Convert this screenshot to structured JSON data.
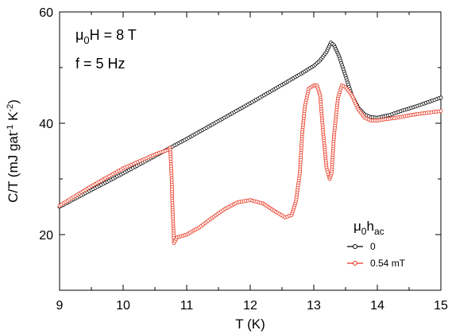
{
  "chart_data": {
    "type": "line",
    "xlabel": "T (K)",
    "ylabel": "C/T (mJ gat⁻¹ K⁻²)",
    "xlim": [
      9,
      15
    ],
    "ylim": [
      10,
      60
    ],
    "xticks": [
      "9",
      "10",
      "11",
      "12",
      "13",
      "14",
      "15"
    ],
    "yticks": [
      "20",
      "40",
      "60"
    ],
    "annotations": [
      "μ0H = 8 T",
      "f = 5 Hz"
    ],
    "legend": {
      "title": "μ0hac",
      "placement": "bottom-right"
    },
    "grid": false,
    "series": [
      {
        "name": "0",
        "color": "#000000",
        "x": [
          9.0,
          9.5,
          10.0,
          10.5,
          11.0,
          11.5,
          12.0,
          12.5,
          12.8,
          13.0,
          13.1,
          13.2,
          13.27,
          13.32,
          13.4,
          13.5,
          13.6,
          13.7,
          13.8,
          13.9,
          14.0,
          14.2,
          14.4,
          14.6,
          14.8,
          15.0
        ],
        "y": [
          25.0,
          28.0,
          31.0,
          34.1,
          37.2,
          40.4,
          43.6,
          46.9,
          48.9,
          50.3,
          51.3,
          52.8,
          54.5,
          54.0,
          52.0,
          48.5,
          45.0,
          42.8,
          41.6,
          41.1,
          41.0,
          41.5,
          42.3,
          43.0,
          43.8,
          44.6
        ]
      },
      {
        "name": "0.54 mT",
        "color": "#e8321c",
        "x": [
          9.0,
          9.5,
          10.0,
          10.5,
          10.7,
          10.74,
          10.76,
          10.78,
          10.8,
          10.85,
          11.0,
          11.2,
          11.4,
          11.6,
          11.8,
          12.0,
          12.2,
          12.4,
          12.55,
          12.65,
          12.72,
          12.78,
          12.82,
          12.86,
          12.92,
          13.0,
          13.05,
          13.1,
          13.15,
          13.2,
          13.25,
          13.28,
          13.32,
          13.38,
          13.44,
          13.5,
          13.6,
          13.7,
          13.8,
          13.9,
          14.0,
          14.3,
          14.6,
          15.0
        ],
        "y": [
          25.2,
          28.7,
          31.9,
          34.4,
          35.2,
          35.6,
          31.0,
          24.0,
          18.5,
          19.5,
          20.0,
          21.3,
          23.0,
          24.6,
          25.8,
          26.2,
          25.6,
          24.1,
          23.1,
          23.5,
          26.0,
          31.0,
          38.5,
          43.0,
          46.2,
          46.8,
          46.8,
          45.0,
          38.0,
          32.0,
          30.0,
          31.0,
          38.0,
          44.5,
          46.8,
          46.5,
          45.0,
          42.5,
          41.0,
          40.5,
          40.5,
          41.0,
          41.6,
          42.2
        ]
      }
    ]
  }
}
